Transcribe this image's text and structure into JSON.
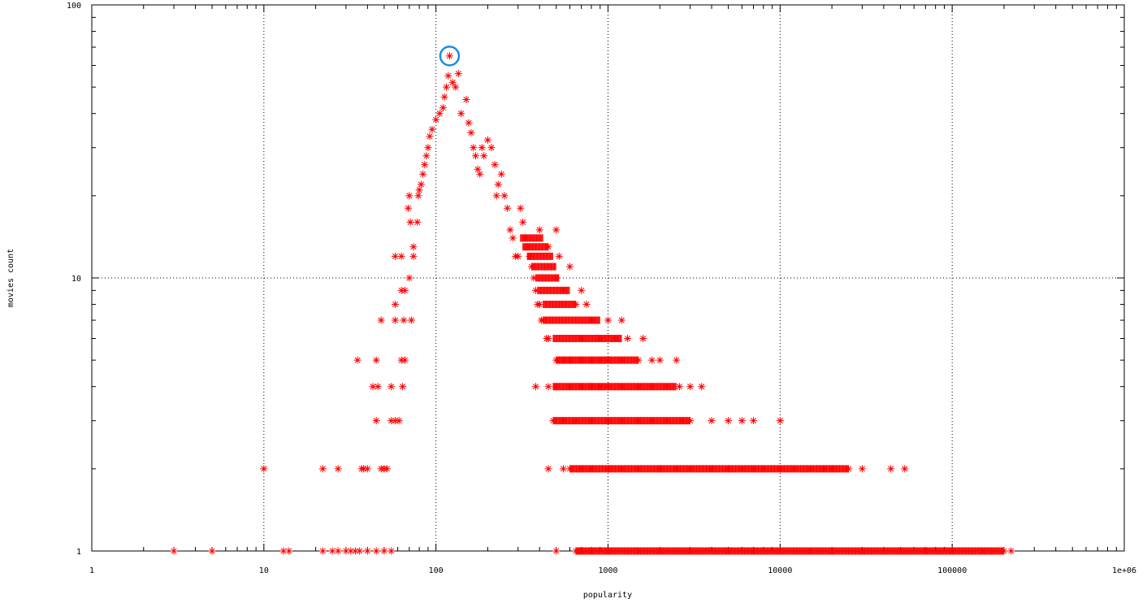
{
  "chart_data": {
    "type": "scatter",
    "title": "",
    "xlabel": "popularity",
    "ylabel": "movies count",
    "xscale": "log",
    "yscale": "log",
    "xlim": [
      1,
      1000000
    ],
    "ylim": [
      1,
      100
    ],
    "x_ticks": [
      {
        "value": 1,
        "label": "1"
      },
      {
        "value": 10,
        "label": "10"
      },
      {
        "value": 100,
        "label": "100"
      },
      {
        "value": 1000,
        "label": "1000"
      },
      {
        "value": 10000,
        "label": "10000"
      },
      {
        "value": 100000,
        "label": "100000"
      },
      {
        "value": 1000000,
        "label": "1e+06"
      }
    ],
    "y_ticks": [
      {
        "value": 1,
        "label": "1"
      },
      {
        "value": 10,
        "label": "10"
      },
      {
        "value": 100,
        "label": "100"
      }
    ],
    "grid": true,
    "marker": "asterisk",
    "marker_color": "#ff0000",
    "highlight_color": "#1a8fe3",
    "highlight": {
      "x": 120,
      "y": 65
    },
    "points": [
      [
        3,
        1
      ],
      [
        5,
        1
      ],
      [
        13,
        1
      ],
      [
        14,
        1
      ],
      [
        22,
        1
      ],
      [
        25,
        1
      ],
      [
        27,
        1
      ],
      [
        30,
        1
      ],
      [
        32,
        1
      ],
      [
        34,
        1
      ],
      [
        36,
        1
      ],
      [
        40,
        1
      ],
      [
        45,
        1
      ],
      [
        50,
        1
      ],
      [
        55,
        1
      ],
      [
        10,
        2
      ],
      [
        22,
        2
      ],
      [
        27,
        2
      ],
      [
        37,
        2
      ],
      [
        38,
        2
      ],
      [
        40,
        2
      ],
      [
        48,
        2
      ],
      [
        50,
        2
      ],
      [
        52,
        2
      ],
      [
        45,
        3
      ],
      [
        55,
        3
      ],
      [
        58,
        3
      ],
      [
        61,
        3
      ],
      [
        43,
        4
      ],
      [
        46,
        4
      ],
      [
        55,
        4
      ],
      [
        64,
        4
      ],
      [
        35,
        5
      ],
      [
        45,
        5
      ],
      [
        63,
        5
      ],
      [
        66,
        5
      ],
      [
        48,
        7
      ],
      [
        58,
        7
      ],
      [
        65,
        7
      ],
      [
        72,
        7
      ],
      [
        58,
        8
      ],
      [
        63,
        9
      ],
      [
        66,
        9
      ],
      [
        70,
        10
      ],
      [
        58,
        12
      ],
      [
        63,
        12
      ],
      [
        74,
        12
      ],
      [
        74,
        13
      ],
      [
        78,
        16
      ],
      [
        71,
        16
      ],
      [
        69,
        18
      ],
      [
        70,
        20
      ],
      [
        79,
        20
      ],
      [
        80,
        21
      ],
      [
        82,
        22
      ],
      [
        84,
        24
      ],
      [
        86,
        26
      ],
      [
        88,
        28
      ],
      [
        90,
        30
      ],
      [
        92,
        33
      ],
      [
        95,
        35
      ],
      [
        100,
        38
      ],
      [
        105,
        40
      ],
      [
        110,
        42
      ],
      [
        112,
        46
      ],
      [
        115,
        50
      ],
      [
        118,
        55
      ],
      [
        120,
        65
      ],
      [
        125,
        52
      ],
      [
        130,
        50
      ],
      [
        135,
        56
      ],
      [
        140,
        40
      ],
      [
        150,
        45
      ],
      [
        155,
        37
      ],
      [
        160,
        34
      ],
      [
        165,
        30
      ],
      [
        170,
        28
      ],
      [
        175,
        25
      ],
      [
        180,
        24
      ],
      [
        185,
        30
      ],
      [
        190,
        28
      ],
      [
        200,
        32
      ],
      [
        210,
        30
      ],
      [
        220,
        26
      ],
      [
        225,
        20
      ],
      [
        230,
        22
      ],
      [
        240,
        24
      ],
      [
        250,
        20
      ],
      [
        260,
        18
      ],
      [
        270,
        15
      ],
      [
        280,
        14
      ],
      [
        290,
        12
      ],
      [
        300,
        12
      ],
      [
        310,
        18
      ],
      [
        320,
        16
      ],
      [
        330,
        14
      ],
      [
        340,
        13
      ],
      [
        350,
        12
      ],
      [
        360,
        11
      ],
      [
        370,
        10
      ],
      [
        380,
        9
      ],
      [
        390,
        8
      ],
      [
        400,
        8
      ],
      [
        410,
        7
      ],
      [
        420,
        7
      ],
      [
        440,
        6
      ],
      [
        450,
        6
      ],
      [
        500,
        5
      ],
      [
        550,
        5
      ],
      [
        600,
        5
      ],
      [
        700,
        5
      ],
      [
        800,
        5
      ],
      [
        900,
        5
      ],
      [
        1000,
        5
      ],
      [
        1200,
        5
      ],
      [
        1500,
        5
      ],
      [
        1800,
        5
      ],
      [
        2000,
        5
      ],
      [
        2500,
        5
      ],
      [
        400,
        15
      ],
      [
        500,
        15
      ],
      [
        450,
        13
      ],
      [
        520,
        12
      ],
      [
        600,
        11
      ],
      [
        500,
        10
      ],
      [
        550,
        9
      ],
      [
        700,
        9
      ],
      [
        650,
        8
      ],
      [
        750,
        8
      ],
      [
        800,
        7
      ],
      [
        1000,
        7
      ],
      [
        1200,
        7
      ],
      [
        700,
        6
      ],
      [
        900,
        6
      ],
      [
        1100,
        6
      ],
      [
        1300,
        6
      ],
      [
        1600,
        6
      ],
      [
        380,
        4
      ],
      [
        450,
        4
      ],
      [
        500,
        4
      ],
      [
        600,
        4
      ],
      [
        700,
        4
      ],
      [
        800,
        4
      ],
      [
        900,
        4
      ],
      [
        1000,
        4
      ],
      [
        1200,
        4
      ],
      [
        1500,
        4
      ],
      [
        1800,
        4
      ],
      [
        2200,
        4
      ],
      [
        2600,
        4
      ],
      [
        3000,
        4
      ],
      [
        3500,
        4
      ],
      [
        480,
        3
      ],
      [
        550,
        3
      ],
      [
        650,
        3
      ],
      [
        800,
        3
      ],
      [
        1000,
        3
      ],
      [
        1200,
        3
      ],
      [
        1500,
        3
      ],
      [
        1800,
        3
      ],
      [
        2200,
        3
      ],
      [
        2700,
        3
      ],
      [
        3000,
        3
      ],
      [
        4000,
        3
      ],
      [
        5000,
        3
      ],
      [
        6000,
        3
      ],
      [
        7000,
        3
      ],
      [
        10000,
        3
      ],
      [
        450,
        2
      ],
      [
        550,
        2
      ],
      [
        600,
        2
      ],
      [
        700,
        2
      ],
      [
        800,
        2
      ],
      [
        1000,
        2
      ],
      [
        1200,
        2
      ],
      [
        1500,
        2
      ],
      [
        2000,
        2
      ],
      [
        2500,
        2
      ],
      [
        3000,
        2
      ],
      [
        4000,
        2
      ],
      [
        5000,
        2
      ],
      [
        6000,
        2
      ],
      [
        7000,
        2
      ],
      [
        8000,
        2
      ],
      [
        10000,
        2
      ],
      [
        12000,
        2
      ],
      [
        15000,
        2
      ],
      [
        18000,
        2
      ],
      [
        20000,
        2
      ],
      [
        25000,
        2
      ],
      [
        30000,
        2
      ],
      [
        44000,
        2
      ],
      [
        53000,
        2
      ],
      [
        500,
        1
      ],
      [
        650,
        1
      ],
      [
        700,
        1
      ],
      [
        800,
        1
      ],
      [
        1000,
        1
      ],
      [
        1500,
        1
      ],
      [
        2000,
        1
      ],
      [
        3000,
        1
      ],
      [
        5000,
        1
      ],
      [
        7000,
        1
      ],
      [
        10000,
        1
      ],
      [
        15000,
        1
      ],
      [
        20000,
        1
      ],
      [
        30000,
        1
      ],
      [
        50000,
        1
      ],
      [
        70000,
        1
      ],
      [
        100000,
        1
      ],
      [
        150000,
        1
      ],
      [
        200000,
        1
      ],
      [
        220000,
        1
      ]
    ],
    "dense_runs": [
      {
        "y": 1,
        "x_from": 650,
        "x_to": 200000
      },
      {
        "y": 2,
        "x_from": 600,
        "x_to": 25000
      },
      {
        "y": 3,
        "x_from": 480,
        "x_to": 3000
      },
      {
        "y": 4,
        "x_from": 480,
        "x_to": 2500
      },
      {
        "y": 5,
        "x_from": 500,
        "x_to": 1500
      },
      {
        "y": 6,
        "x_from": 480,
        "x_to": 1200
      },
      {
        "y": 7,
        "x_from": 420,
        "x_to": 900
      },
      {
        "y": 8,
        "x_from": 420,
        "x_to": 650
      },
      {
        "y": 9,
        "x_from": 390,
        "x_to": 600
      },
      {
        "y": 10,
        "x_from": 380,
        "x_to": 520
      },
      {
        "y": 11,
        "x_from": 360,
        "x_to": 500
      },
      {
        "y": 12,
        "x_from": 340,
        "x_to": 480
      },
      {
        "y": 13,
        "x_from": 320,
        "x_to": 450
      },
      {
        "y": 14,
        "x_from": 310,
        "x_to": 420
      }
    ]
  }
}
